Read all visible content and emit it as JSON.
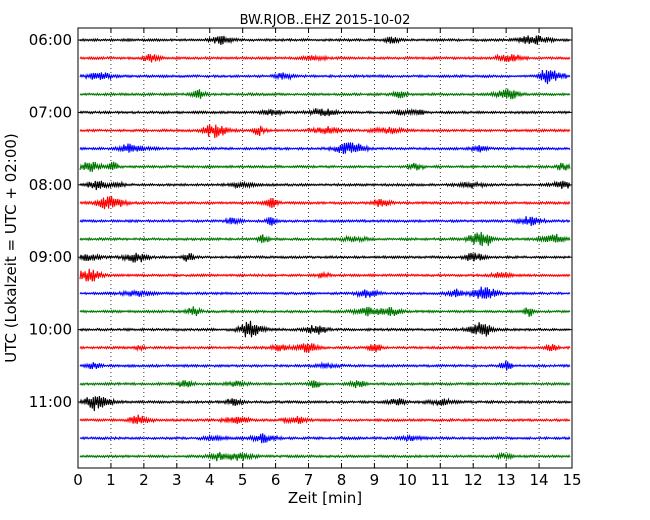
{
  "chart_data": {
    "type": "line",
    "title": "BW.RJOB..EHZ 2015-10-02",
    "xlabel": "Zeit  [min]",
    "ylabel": "UTC (Lokalzeit = UTC + 02:00)",
    "xlim": [
      0,
      15
    ],
    "x_ticks": [
      "0",
      "1",
      "2",
      "3",
      "4",
      "5",
      "6",
      "7",
      "8",
      "9",
      "10",
      "11",
      "12",
      "13",
      "14",
      "15"
    ],
    "y_ticks": [
      "06:00",
      "07:00",
      "08:00",
      "09:00",
      "10:00",
      "11:00"
    ],
    "trace_interval_minutes": 15,
    "trace_start": "06:00",
    "trace_count": 24,
    "trace_colors": [
      "#000000",
      "#ff0000",
      "#0000ff",
      "#007700"
    ],
    "grid_x": "dotted",
    "legend": "none"
  }
}
